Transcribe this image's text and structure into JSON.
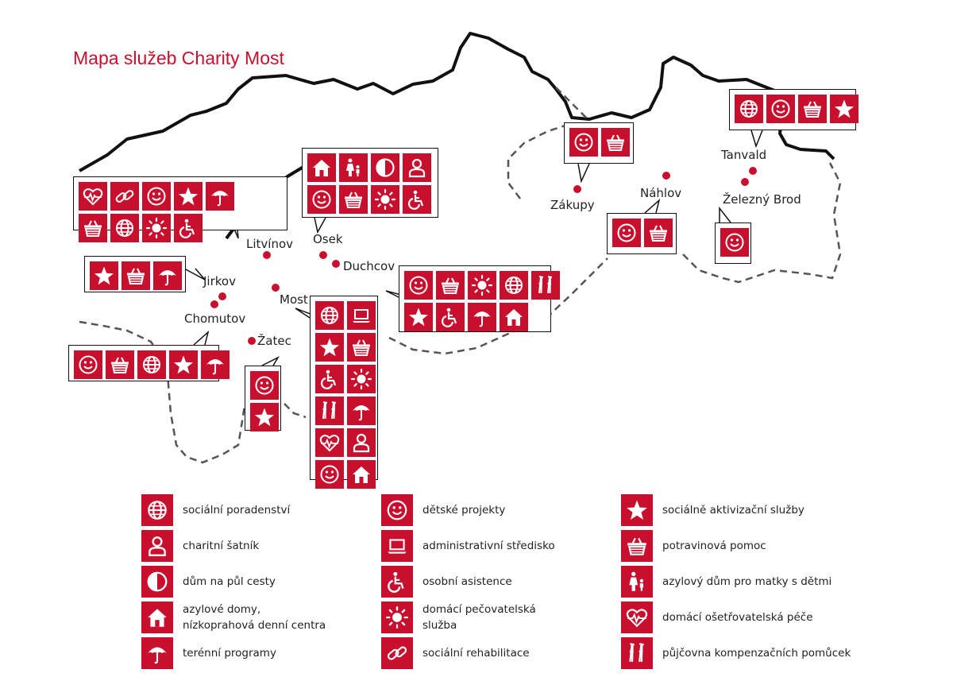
{
  "map": {
    "title": "Mapa služeb Charity Most",
    "accent_color": "#c8102e",
    "cities": [
      {
        "id": "litvinov",
        "name": "Litvínov",
        "services": [
          "heartbeat-icon",
          "chain-icon",
          "smile-icon",
          "star-icon",
          "umbrella-icon",
          "basket-icon",
          "globe-icon",
          "sun-icon",
          "wheelchair-icon"
        ]
      },
      {
        "id": "jirkov",
        "name": "Jirkov",
        "services": [
          "star-icon",
          "basket-icon",
          "umbrella-icon"
        ]
      },
      {
        "id": "chomutov",
        "name": "Chomutov",
        "services": [
          "smile-icon",
          "basket-icon",
          "globe-icon",
          "star-icon",
          "umbrella-icon"
        ]
      },
      {
        "id": "zatec",
        "name": "Žatec",
        "services": [
          "smile-icon",
          "star-icon"
        ]
      },
      {
        "id": "most",
        "name": "Most",
        "services": [
          "globe-icon",
          "laptop-icon",
          "star-icon",
          "basket-icon",
          "wheelchair-icon",
          "sun-icon",
          "crutches-icon",
          "umbrella-icon",
          "heartbeat-icon",
          "person-icon",
          "smile-icon",
          "house-icon"
        ]
      },
      {
        "id": "osek",
        "name": "Osek",
        "services": [
          "house-icon",
          "mother-child-icon",
          "half-circle-icon",
          "person-icon",
          "smile-icon",
          "basket-icon",
          "sun-icon",
          "wheelchair-icon"
        ]
      },
      {
        "id": "duchcov",
        "name": "Duchcov",
        "services": [
          "smile-icon",
          "basket-icon",
          "sun-icon",
          "globe-icon",
          "crutches-icon",
          "star-icon",
          "wheelchair-icon",
          "umbrella-icon",
          "house-icon"
        ]
      },
      {
        "id": "zakupy",
        "name": "Zákupy",
        "services": [
          "smile-icon",
          "basket-icon"
        ]
      },
      {
        "id": "nahlov",
        "name": "Náhlov",
        "services": [
          "smile-icon",
          "basket-icon"
        ]
      },
      {
        "id": "tanvald",
        "name": "Tanvald",
        "services": [
          "globe-icon",
          "smile-icon",
          "basket-icon",
          "star-icon"
        ]
      },
      {
        "id": "zelezny-brod",
        "name": "Železný Brod",
        "services": [
          "smile-icon"
        ]
      }
    ]
  },
  "legend": [
    {
      "icon": "globe-icon",
      "label": "sociální poradenství"
    },
    {
      "icon": "person-icon",
      "label": "charitní šatník"
    },
    {
      "icon": "half-circle-icon",
      "label": "dům na půl cesty"
    },
    {
      "icon": "house-icon",
      "label": "azylové domy,\nnízkoprahová denní centra"
    },
    {
      "icon": "umbrella-icon",
      "label": "terénní programy"
    },
    {
      "icon": "smile-icon",
      "label": "dětské projekty"
    },
    {
      "icon": "laptop-icon",
      "label": "administrativní středisko"
    },
    {
      "icon": "wheelchair-icon",
      "label": "osobní asistence"
    },
    {
      "icon": "sun-icon",
      "label": "domácí pečovatelská\nslužba"
    },
    {
      "icon": "chain-icon",
      "label": "sociální rehabilitace"
    },
    {
      "icon": "star-icon",
      "label": "sociálně aktivizační služby"
    },
    {
      "icon": "basket-icon",
      "label": "potravinová pomoc"
    },
    {
      "icon": "mother-child-icon",
      "label": "azylový dům pro matky s dětmi"
    },
    {
      "icon": "heartbeat-icon",
      "label": "domácí ošetřovatelská péče"
    },
    {
      "icon": "crutches-icon",
      "label": "půjčovna kompenzačních pomůcek"
    }
  ]
}
